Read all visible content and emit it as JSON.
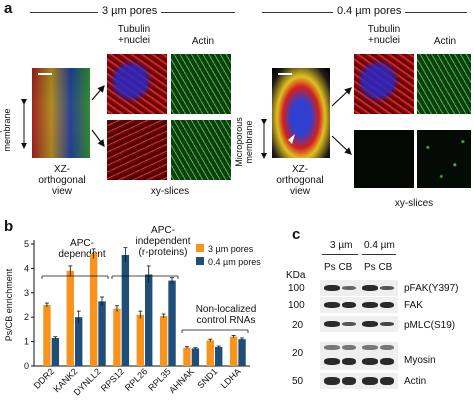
{
  "panel_a": {
    "label": "a",
    "left_title": "3 µm pores",
    "right_title": "0.4 µm pores",
    "col_tubulin": "Tubulin\n+nuclei",
    "col_actin": "Actin",
    "side_label": "Microporous\nmembrane",
    "xz_label": "XZ-\northogonal\nview",
    "xy_label": "xy-slices"
  },
  "panel_b": {
    "label": "b",
    "groups": [
      "APC-\ndependent",
      "APC-\nindependent\n(r-proteins)",
      "Non-localized\ncontrol RNAs"
    ]
  },
  "chart_data": {
    "type": "bar",
    "ylabel": "Ps/CB enrichment",
    "ylim": [
      0,
      5
    ],
    "yticks": [
      0,
      1,
      2,
      3,
      4,
      5
    ],
    "categories": [
      "DDR2",
      "KANK2",
      "DYNLL2",
      "RPS12",
      "RPL26",
      "RPL35",
      "AHNAK",
      "SND1",
      "LDHA"
    ],
    "series": [
      {
        "name": "3 µm pores",
        "color": "#f7941d",
        "values": [
          2.5,
          3.9,
          4.6,
          2.35,
          2.1,
          2.05,
          0.75,
          1.05,
          1.2
        ],
        "errors": [
          0.08,
          0.2,
          0.2,
          0.12,
          0.15,
          0.08,
          0.04,
          0.05,
          0.05
        ]
      },
      {
        "name": "0.4 µm pores",
        "color": "#1f4e79",
        "values": [
          1.15,
          2.0,
          2.65,
          4.55,
          3.75,
          3.5,
          0.72,
          0.78,
          1.1
        ],
        "errors": [
          0.05,
          0.25,
          0.18,
          0.3,
          0.35,
          0.12,
          0.03,
          0.04,
          0.05
        ]
      }
    ]
  },
  "panel_c": {
    "label": "c",
    "head_3": "3 µm",
    "head_04": "0.4 µm",
    "lanes_3": "Ps CB",
    "lanes_04": "Ps CB",
    "kda": "KDa",
    "blots": [
      {
        "name": "pFAK(Y397)",
        "marker": "100"
      },
      {
        "name": "FAK",
        "marker": "100"
      },
      {
        "name": "pMLC(S19)",
        "marker": "20"
      },
      {
        "name": "Myosin",
        "marker": "20"
      },
      {
        "name": "Actin",
        "marker": "50"
      }
    ]
  }
}
